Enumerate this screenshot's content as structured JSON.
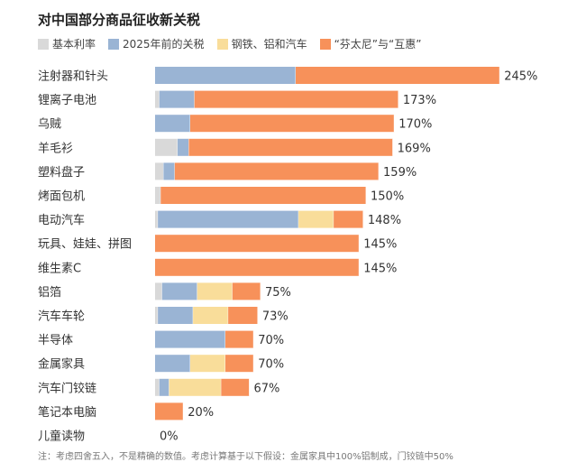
{
  "title": "对中国部分商品征收新关税",
  "legend": [
    {
      "label": "基本利率",
      "color": "#d9d9d9"
    },
    {
      "label": "2025年前的关税",
      "color": "#9ab4d4"
    },
    {
      "label": "钢铁、铝和汽车",
      "color": "#f9dd9a"
    },
    {
      "label": "“芬太尼”与“互惠”",
      "color": "#f7915a"
    }
  ],
  "footnote": "注：考虑四舍五入，不是精确的数值。考虑计算基于以下假设：金属家具中100%铝制成，门铰链中50%",
  "chart_data": {
    "type": "bar",
    "stacked": true,
    "orientation": "horizontal",
    "categories": [
      "注射器和针头",
      "锂离子电池",
      "乌贼",
      "羊毛衫",
      "塑料盘子",
      "烤面包机",
      "电动汽车",
      "玩具、娃娃、拼图",
      "维生素C",
      "铝箔",
      "汽车车轮",
      "半导体",
      "金属家具",
      "汽车门铰链",
      "笔记本电脑",
      "儿童读物"
    ],
    "series": [
      {
        "name": "基本利率",
        "color": "#d9d9d9",
        "values": [
          0,
          3,
          0,
          16,
          6,
          4,
          2,
          0,
          0,
          5,
          2,
          0,
          0,
          3,
          0,
          0
        ]
      },
      {
        "name": "2025年前的关税",
        "color": "#9ab4d4",
        "values": [
          100,
          25,
          25,
          8,
          8,
          0,
          100,
          0,
          0,
          25,
          25,
          50,
          25,
          7,
          0,
          0
        ]
      },
      {
        "name": "钢铁、铝和汽车",
        "color": "#f9dd9a",
        "values": [
          0,
          0,
          0,
          0,
          0,
          0,
          25,
          0,
          0,
          25,
          25,
          0,
          25,
          37,
          0,
          0
        ]
      },
      {
        "name": "“芬太尼”与“互惠”",
        "color": "#f7915a",
        "values": [
          145,
          145,
          145,
          145,
          145,
          146,
          21,
          145,
          145,
          20,
          21,
          20,
          20,
          20,
          20,
          0
        ]
      }
    ],
    "totals": [
      "245%",
      "173%",
      "170%",
      "169%",
      "159%",
      "150%",
      "148%",
      "145%",
      "145%",
      "75%",
      "73%",
      "70%",
      "70%",
      "67%",
      "20%",
      "0%"
    ],
    "xlim": [
      0,
      250
    ]
  }
}
